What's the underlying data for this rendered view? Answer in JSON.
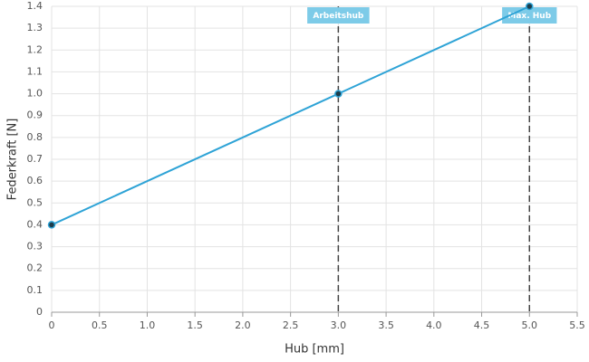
{
  "chart_data": {
    "type": "line",
    "x_label": "Hub [mm]",
    "y_label": "Federkraft [N]",
    "series": [
      {
        "name": "Federkraft",
        "color": "#2ea3d6",
        "x": [
          0,
          3,
          5
        ],
        "values": [
          0.4,
          1.0,
          1.4
        ]
      }
    ],
    "xlim": [
      0,
      5.5
    ],
    "xticks": [
      0,
      0.5,
      {
        "value": 1,
        "label": "1.0"
      },
      1.5,
      {
        "value": 2,
        "label": "2.0"
      },
      2.5,
      {
        "value": 3,
        "label": "3.0"
      },
      3.5,
      {
        "value": 4,
        "label": "4.0"
      },
      4.5,
      {
        "value": 5,
        "label": "5.0"
      },
      5.5
    ],
    "ylim": [
      0,
      1.4
    ],
    "yticks": [
      0,
      0.1,
      0.2,
      0.3,
      0.4,
      0.5,
      0.6,
      0.7,
      0.8,
      0.9,
      {
        "value": 1,
        "label": "1.0"
      },
      1.1,
      1.2,
      1.3,
      1.4
    ],
    "grid": true,
    "annotations": [
      {
        "x": 3,
        "text": "Arbeitshub",
        "color": "#7dcbe8"
      },
      {
        "x": 5,
        "text": "Max. Hub",
        "color": "#7dcbe8"
      }
    ]
  }
}
